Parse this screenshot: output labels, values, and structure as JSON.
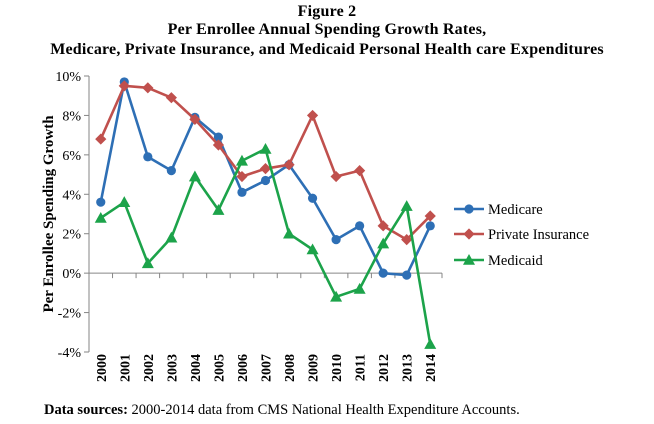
{
  "figure_label": "Figure 2",
  "title_line1": "Per Enrollee Annual Spending Growth Rates,",
  "title_line2": "Medicare, Private Insurance, and Medicaid Personal Health care Expenditures",
  "source_label": "Data sources:",
  "source_text": " 2000-2014 data from CMS National Health Expenditure Accounts.",
  "chart_data": {
    "type": "line",
    "x": [
      "2000",
      "2001",
      "2002",
      "2003",
      "2004",
      "2005",
      "2006",
      "2007",
      "2008",
      "2009",
      "2010",
      "2011",
      "2012",
      "2013",
      "2014"
    ],
    "ylabel": "Per Enrollee Spending Growth",
    "xlabel": "",
    "ylim": [
      -4,
      10
    ],
    "yticks": [
      -4,
      -2,
      0,
      2,
      4,
      6,
      8,
      10
    ],
    "ytick_labels": [
      "-4%",
      "-2%",
      "0%",
      "2%",
      "4%",
      "6%",
      "8%",
      "10%"
    ],
    "grid": false,
    "legend_position": "right",
    "series": [
      {
        "name": "Medicare",
        "color": "#2e6fb5",
        "marker": "circle",
        "values": [
          3.6,
          9.7,
          5.9,
          5.2,
          7.9,
          6.9,
          4.1,
          4.7,
          5.5,
          3.8,
          1.7,
          2.4,
          0.0,
          -0.1,
          2.4
        ]
      },
      {
        "name": "Private Insurance",
        "color": "#c0504d",
        "marker": "diamond",
        "values": [
          6.8,
          9.5,
          9.4,
          8.9,
          7.8,
          6.5,
          4.9,
          5.3,
          5.5,
          8.0,
          4.9,
          5.2,
          2.4,
          1.7,
          2.9
        ]
      },
      {
        "name": "Medicaid",
        "color": "#1ca34a",
        "marker": "triangle",
        "values": [
          2.8,
          3.6,
          0.5,
          1.8,
          4.9,
          3.2,
          5.7,
          6.3,
          2.0,
          1.2,
          -1.2,
          -0.8,
          1.5,
          3.4,
          -3.6
        ]
      }
    ]
  }
}
